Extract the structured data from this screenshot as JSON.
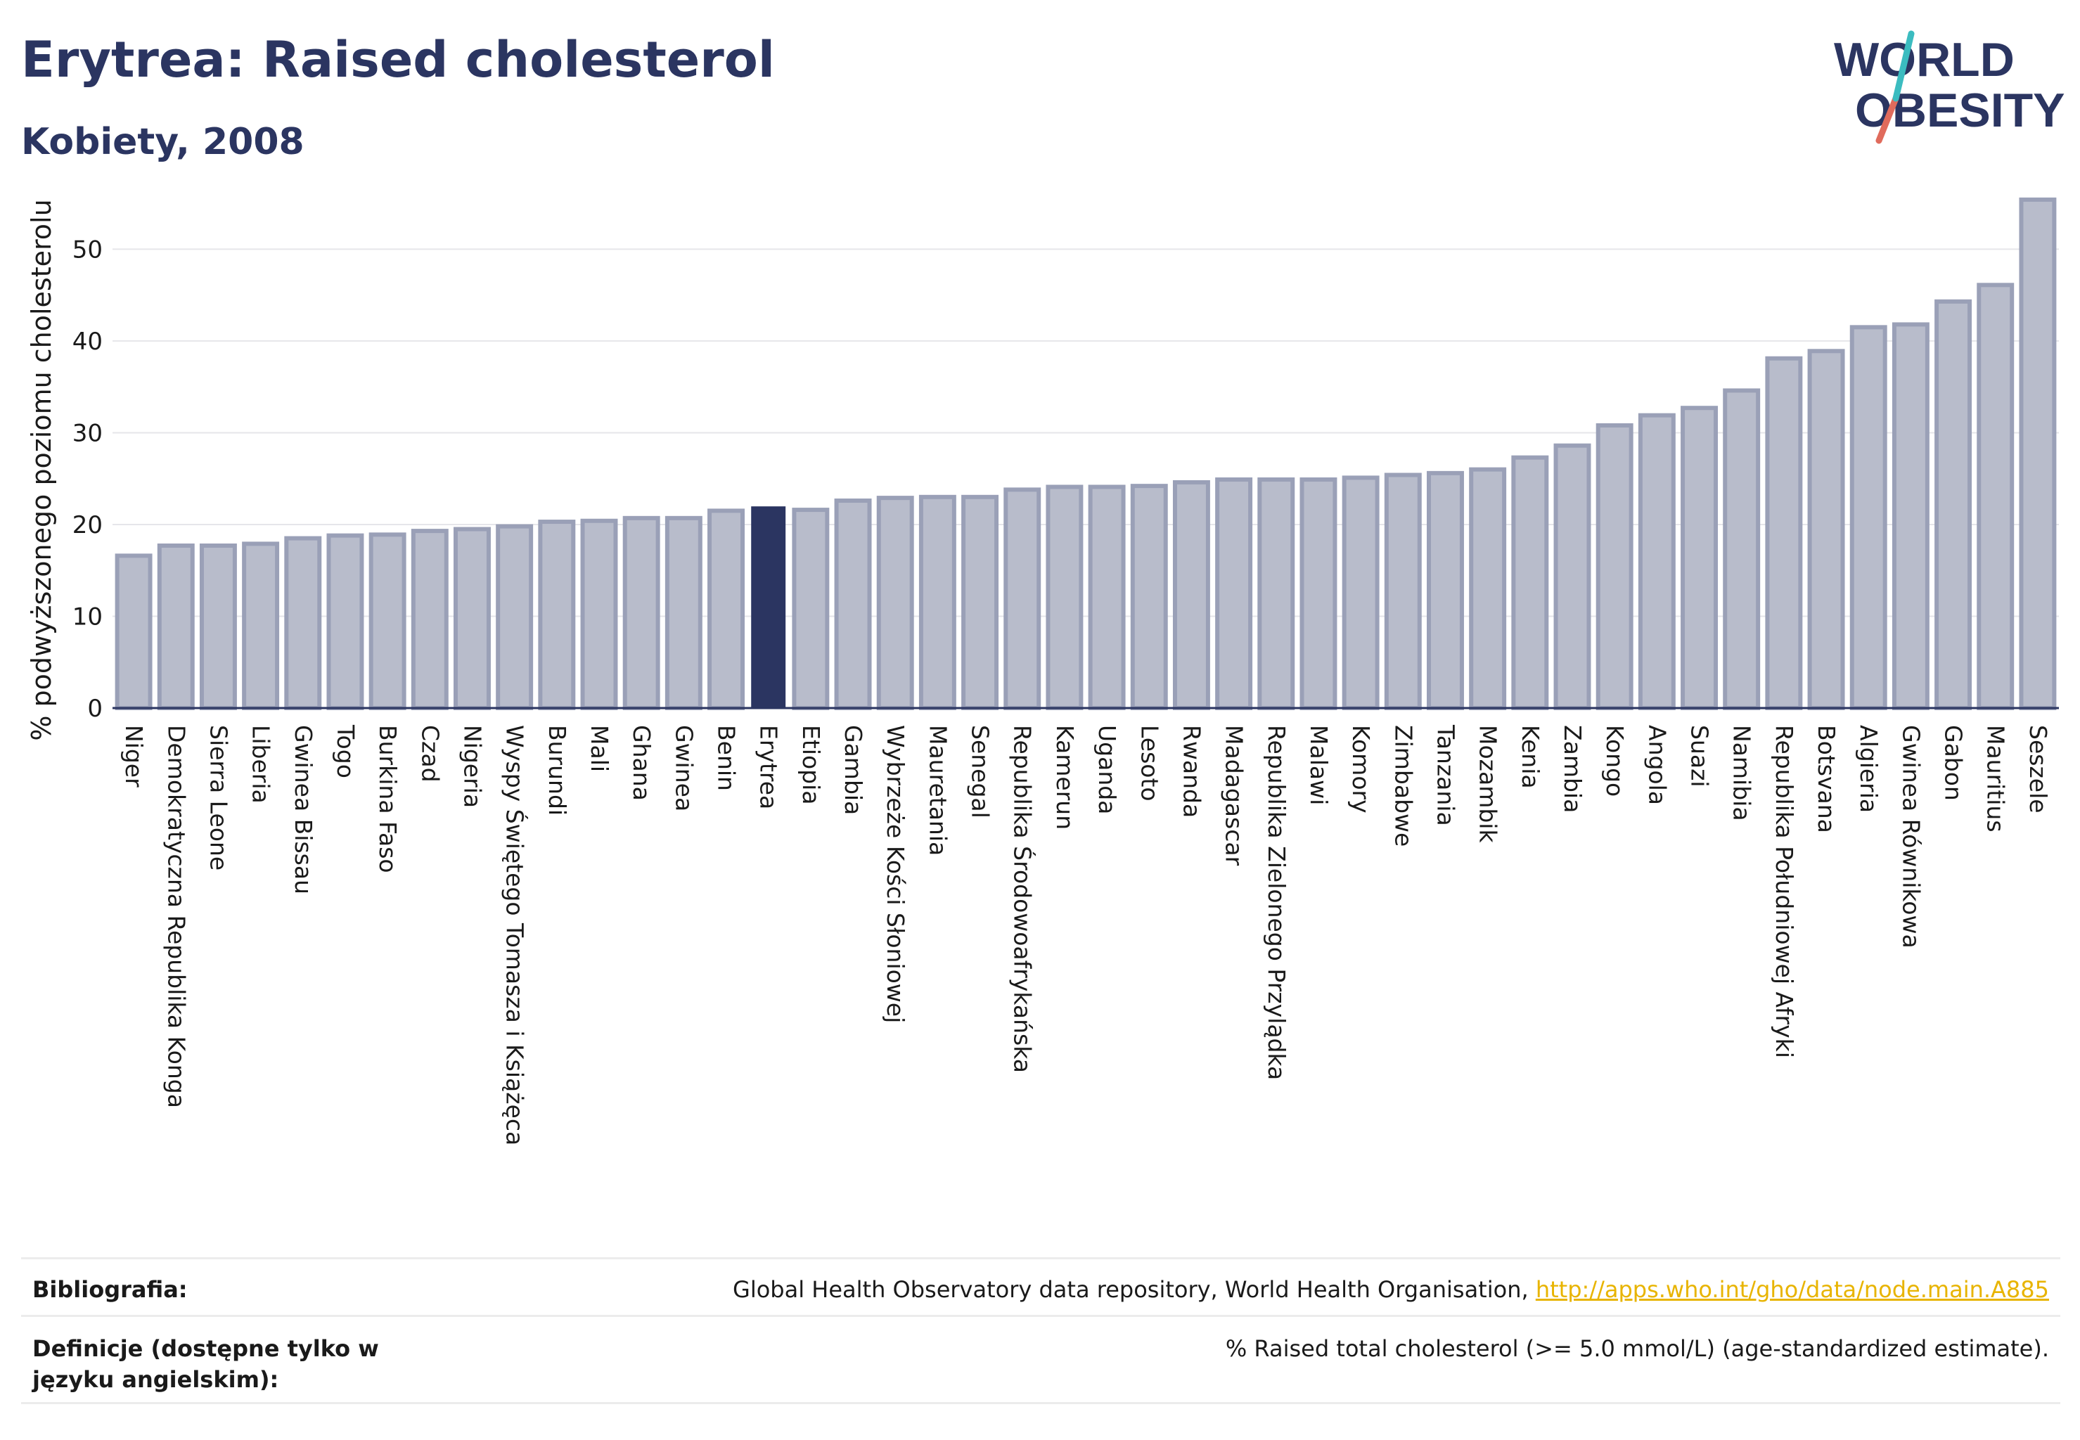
{
  "header": {
    "title": "Erytrea: Raised cholesterol",
    "subtitle": "Kobiety, 2008"
  },
  "logo": {
    "line1": "WORLD",
    "line2": "OBESITY"
  },
  "chart_data": {
    "type": "bar",
    "ylabel": "% podwyższonego poziomu cholesterolu",
    "ylim": [
      0,
      58
    ],
    "yticks": [
      0,
      10,
      20,
      30,
      40,
      50
    ],
    "grid": true,
    "highlight": "Erytrea",
    "bar_color": "#b8bccb",
    "bar_border": "#9aa0b7",
    "highlight_color": "#2b3561",
    "categories": [
      "Niger",
      "Demokratyczna Republika Konga",
      "Sierra Leone",
      "Liberia",
      "Gwinea Bissau",
      "Togo",
      "Burkina Faso",
      "Czad",
      "Nigeria",
      "Wyspy Świętego Tomasza i Książęca",
      "Burundi",
      "Mali",
      "Ghana",
      "Gwinea",
      "Benin",
      "Erytrea",
      "Etiopia",
      "Gambia",
      "Wybrzeże Kości Słoniowej",
      "Mauretania",
      "Senegal",
      "Republika Środowoafrykańska",
      "Kamerun",
      "Uganda",
      "Lesoto",
      "Rwanda",
      "Madagascar",
      "Republika Zielonego Przylądka",
      "Malawi",
      "Komory",
      "Zimbabwe",
      "Tanzania",
      "Mozambik",
      "Kenia",
      "Zambia",
      "Kongo",
      "Angola",
      "Suazi",
      "Namibia",
      "Republika Południowej Afryki",
      "Botsvana",
      "Algieria",
      "Gwinea Równikowa",
      "Gabon",
      "Mauritius",
      "Seszele"
    ],
    "values": [
      16.6,
      17.7,
      17.7,
      17.9,
      18.5,
      18.8,
      18.9,
      19.3,
      19.5,
      19.8,
      20.3,
      20.4,
      20.7,
      20.7,
      21.5,
      21.9,
      21.6,
      22.6,
      22.9,
      23.0,
      23.0,
      23.8,
      24.1,
      24.1,
      24.2,
      24.6,
      24.9,
      24.9,
      24.9,
      25.1,
      25.4,
      25.6,
      26.0,
      27.3,
      28.6,
      30.8,
      31.9,
      32.7,
      34.6,
      38.1,
      38.9,
      41.5,
      41.8,
      44.3,
      46.1,
      55.4
    ]
  },
  "footer": {
    "bibliography_label": "Bibliografia:",
    "bibliography_text": "Global Health Observatory data repository, World Health Organisation, ",
    "bibliography_link": "http://apps.who.int/gho/data/node.main.A885",
    "definitions_label": "Definicje (dostępne tylko w języku angielskim):",
    "definitions_text": "% Raised total cholesterol (>= 5.0 mmol/L) (age-standardized estimate)."
  }
}
